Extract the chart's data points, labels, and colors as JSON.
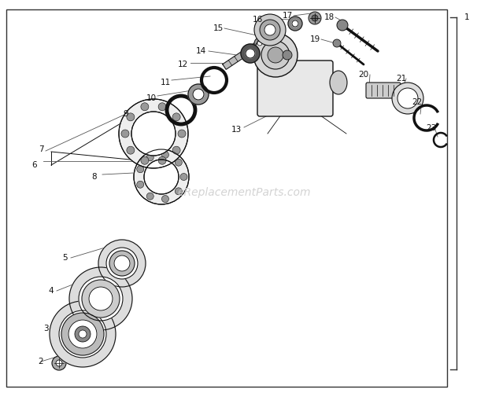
{
  "bg_color": "#ffffff",
  "border_color": "#444444",
  "fig_width": 6.2,
  "fig_height": 5.0,
  "dpi": 100,
  "watermark": "eReplacementParts.com",
  "watermark_color": "#cccccc",
  "label_fontsize": 7.5,
  "label_color": "#111111",
  "line_color": "#111111",
  "line_width": 0.8
}
